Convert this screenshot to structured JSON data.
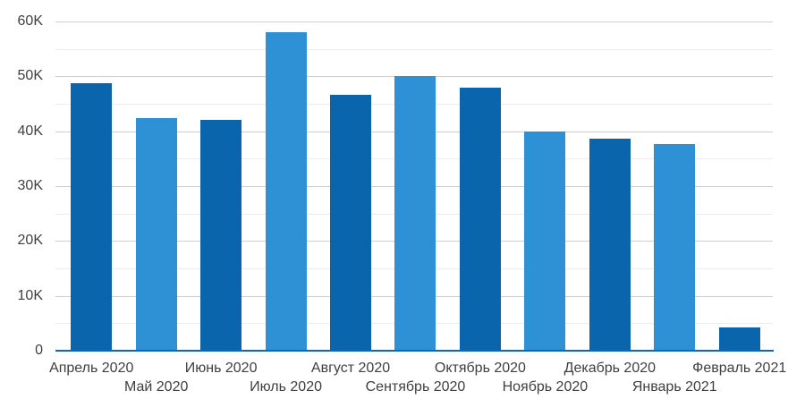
{
  "chart_data": {
    "type": "bar",
    "categories": [
      "Апрель 2020",
      "Май 2020",
      "Июнь 2020",
      "Июль 2020",
      "Август 2020",
      "Сентябрь 2020",
      "Октябрь 2020",
      "Ноябрь 2020",
      "Декабрь 2020",
      "Январь 2021",
      "Февраль 2021"
    ],
    "values": [
      48700,
      42400,
      42000,
      58000,
      46600,
      50000,
      47900,
      40000,
      38600,
      37600,
      4200
    ],
    "xlabel": "",
    "ylabel": "",
    "ylim": [
      0,
      60000
    ],
    "yticks": [
      {
        "label": "0",
        "value": 0
      },
      {
        "label": "10K",
        "value": 10000
      },
      {
        "label": "20K",
        "value": 20000
      },
      {
        "label": "30K",
        "value": 30000
      },
      {
        "label": "40K",
        "value": 40000
      },
      {
        "label": "50K",
        "value": 50000
      },
      {
        "label": "60K",
        "value": 60000
      }
    ],
    "grid": {
      "major_step": 10000,
      "minor_step": 5000,
      "visible": true
    },
    "legend": "none",
    "x_label_layout": "staggered-two-rows",
    "colors": {
      "bar_dark": "#0b65ad",
      "bar_light": "#2e90d5",
      "axis_line": "#0f6ab4",
      "grid_major": "#cfcfcf",
      "grid_minor": "#ececec",
      "text": "#3f3f3f",
      "background": "#ffffff"
    },
    "bar_color_pattern": [
      "bar_dark",
      "bar_light"
    ]
  }
}
